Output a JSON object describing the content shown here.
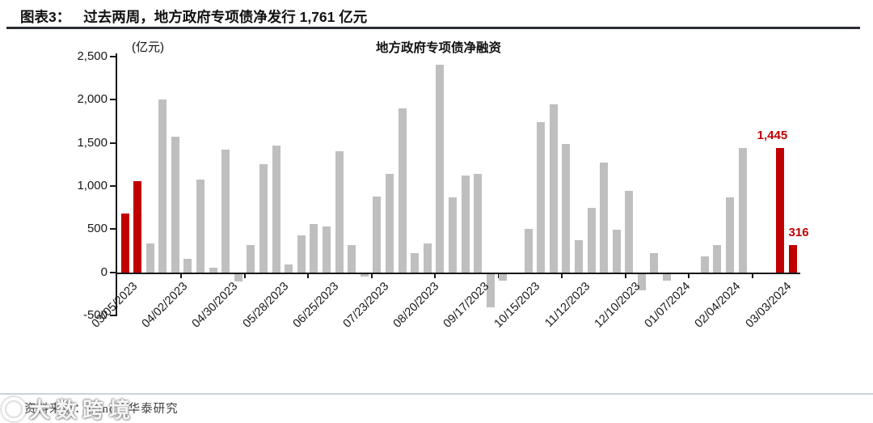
{
  "header": {
    "figure_label": "图表3：",
    "title": "过去两周，地方政府专项债净发行 1,761 亿元"
  },
  "chart_data": {
    "type": "bar",
    "title": "地方政府专项债净融资",
    "unit_label": "(亿元)",
    "ylim": [
      -500,
      2500
    ],
    "ytick_labels": [
      "2,500",
      "2,000",
      "1,500",
      "1,000",
      "500",
      "0",
      "-500"
    ],
    "ytick_values": [
      2500,
      2000,
      1500,
      1000,
      500,
      0,
      -500
    ],
    "grid": false,
    "legend": "none",
    "x_frequency": "weekly",
    "x_tick_labels": [
      "03/05/2023",
      "04/02/2023",
      "04/30/2023",
      "05/28/2023",
      "06/25/2023",
      "07/23/2023",
      "08/20/2023",
      "09/17/2023",
      "10/15/2023",
      "11/12/2023",
      "12/10/2023",
      "01/07/2024",
      "02/04/2024",
      "03/03/2024"
    ],
    "series": [
      {
        "name": "地方政府专项债净融资",
        "values": [
          680,
          1060,
          335,
          2000,
          1570,
          155,
          1080,
          55,
          1420,
          -85,
          315,
          1250,
          1470,
          90,
          430,
          555,
          530,
          1405,
          320,
          -30,
          880,
          1140,
          1900,
          225,
          330,
          2410,
          870,
          1120,
          1145,
          -390,
          -75,
          0,
          505,
          1740,
          1950,
          1490,
          370,
          750,
          1270,
          490,
          940,
          -190,
          220,
          -80,
          0,
          0,
          185,
          320,
          870,
          1445,
          0,
          0,
          1445,
          316
        ]
      }
    ],
    "highlight_indices": [
      0,
      1,
      52,
      53
    ],
    "annotations": [
      {
        "index": 52,
        "text": "1,445"
      },
      {
        "index": 53,
        "text": "316"
      }
    ],
    "colors": {
      "default_bar": "#bfbfbf",
      "highlight_bar": "#c00000",
      "annotation_text": "#c00000",
      "axis": "#17181a"
    }
  },
  "footer": {
    "source": "资料来源：Wind，华泰研究"
  },
  "watermark": {
    "text": "大数跨境"
  }
}
